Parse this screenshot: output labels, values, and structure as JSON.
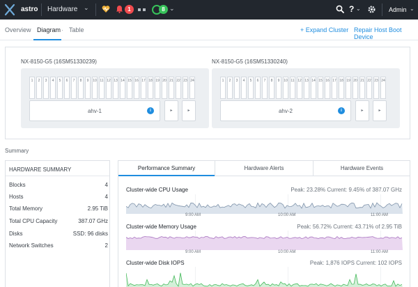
{
  "topbar": {
    "cluster_name": "astro",
    "menu": "Hardware",
    "alerts_count": "1",
    "tasks_count": "8",
    "help": "?",
    "user": "Admin"
  },
  "subnav": {
    "tabs": [
      "Overview",
      "Diagram",
      "Table"
    ],
    "active": "Diagram",
    "actions": [
      "+ Expand Cluster",
      "Repair Host Boot Device"
    ]
  },
  "diagram": {
    "blocks": [
      {
        "title": "NX-8150-G5 (16SM51330239)",
        "node": "ahv-1"
      },
      {
        "title": "NX-8150-G5 (16SM51330240)",
        "node": "ahv-2"
      }
    ],
    "slots": [
      "1",
      "2",
      "3",
      "4",
      "5",
      "6",
      "7",
      "8",
      "9",
      "10",
      "11",
      "12",
      "13",
      "14",
      "15",
      "16",
      "17",
      "18",
      "19",
      "20",
      "21",
      "22",
      "23",
      "24"
    ],
    "node_info": "i",
    "psu_label": "▸"
  },
  "summary": {
    "label": "Summary",
    "hardware": {
      "header": "HARDWARE SUMMARY",
      "rows": [
        {
          "label": "Blocks",
          "value": "4"
        },
        {
          "label": "Hosts",
          "value": "4"
        },
        {
          "label": "Total Memory",
          "value": "2.95 TiB"
        },
        {
          "label": "Total CPU Capacity",
          "value": "387.07 GHz"
        },
        {
          "label": "Disks",
          "value": "SSD: 96 disks"
        },
        {
          "label": "Network Switches",
          "value": "2"
        }
      ]
    }
  },
  "performance": {
    "tabs": [
      "Performance Summary",
      "Hardware Alerts",
      "Hardware Events"
    ],
    "active": "Performance Summary",
    "charts": [
      {
        "title": "Cluster-wide CPU Usage",
        "stats": "Peak: 23.28%   Current: 9.45% of 387.07 GHz",
        "ticks": [
          "9:00 AM",
          "10:00 AM",
          "11:00 AM"
        ],
        "fill": "#dbe3ec",
        "stroke": "#7f93aa"
      },
      {
        "title": "Cluster-wide Memory Usage",
        "stats": "Peak: 56.72%   Current: 43.71% of 2.95 TiB",
        "ticks": [
          "9:00 AM",
          "10:00 AM",
          "11:00 AM"
        ],
        "fill": "#ead7f0",
        "stroke": "#a974c0"
      },
      {
        "title": "Cluster-wide Disk IOPS",
        "stats": "Peak: 1,876 IOPS   Current: 102 IOPS",
        "ticks": [],
        "fill": "#d3f0d8",
        "stroke": "#46b95c"
      }
    ]
  }
}
